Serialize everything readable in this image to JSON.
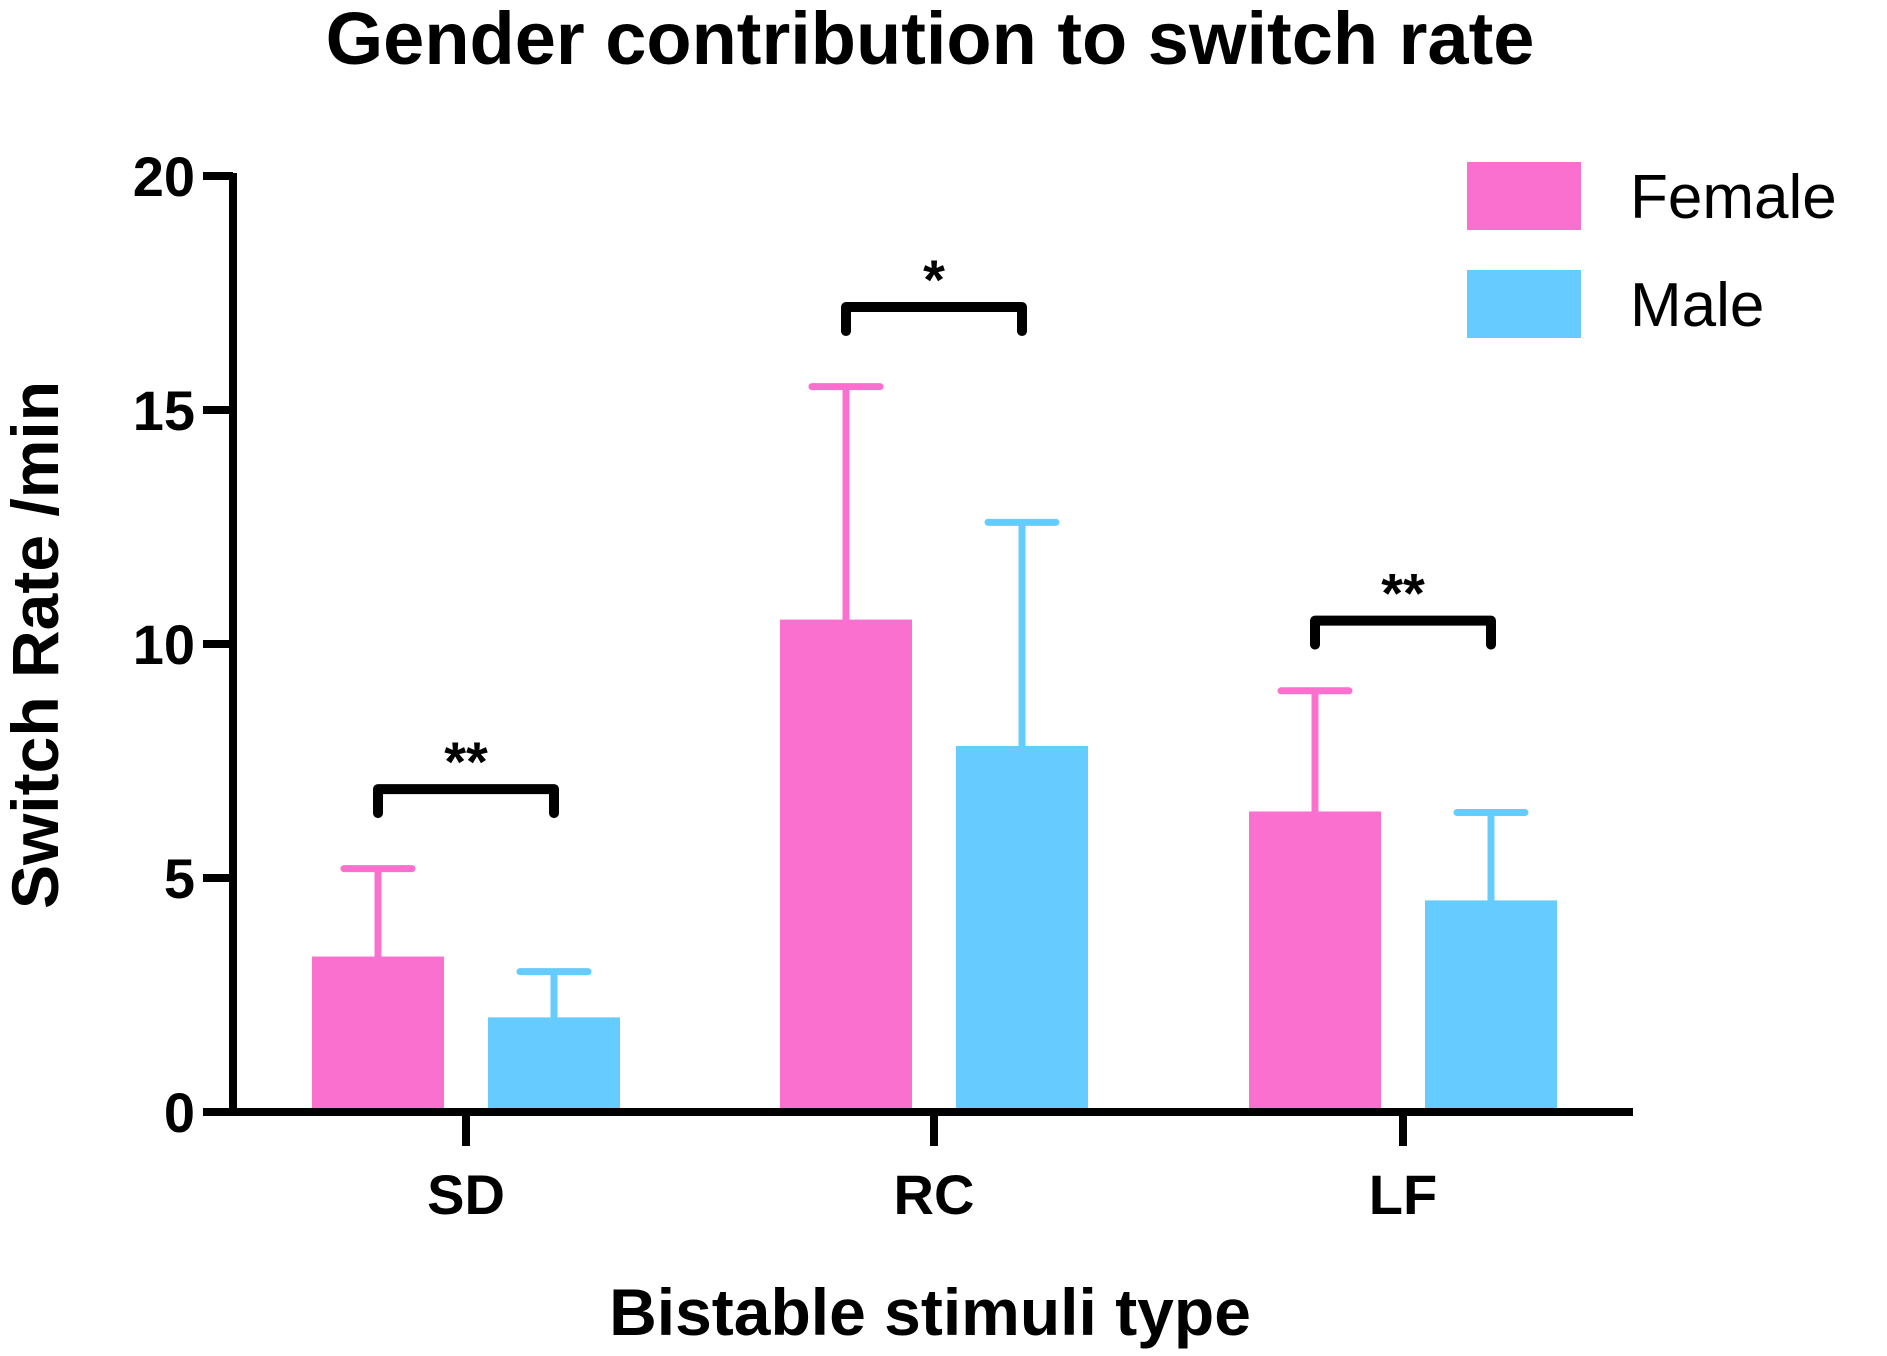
{
  "chart_data": {
    "type": "bar",
    "title": "Gender contribution to switch rate",
    "xlabel": "Bistable stimuli type",
    "ylabel": "Switch Rate /min",
    "ylim": [
      0,
      20
    ],
    "yticks": [
      0,
      5,
      10,
      15,
      20
    ],
    "categories": [
      "SD",
      "RC",
      "LF"
    ],
    "series": [
      {
        "name": "Female",
        "color": "#FA70CE",
        "values": [
          3.3,
          10.5,
          6.4
        ],
        "error": [
          1.9,
          5.0,
          2.6
        ]
      },
      {
        "name": "Male",
        "color": "#66CCFF",
        "values": [
          2.0,
          7.8,
          4.5
        ],
        "error": [
          1.0,
          4.8,
          1.9
        ]
      }
    ],
    "significance": [
      {
        "category": "SD",
        "label": "**",
        "level": 6.9
      },
      {
        "category": "RC",
        "label": "*",
        "level": 17.2
      },
      {
        "category": "LF",
        "label": "**",
        "level": 10.5
      }
    ],
    "legend": "top-right",
    "grid": false
  }
}
